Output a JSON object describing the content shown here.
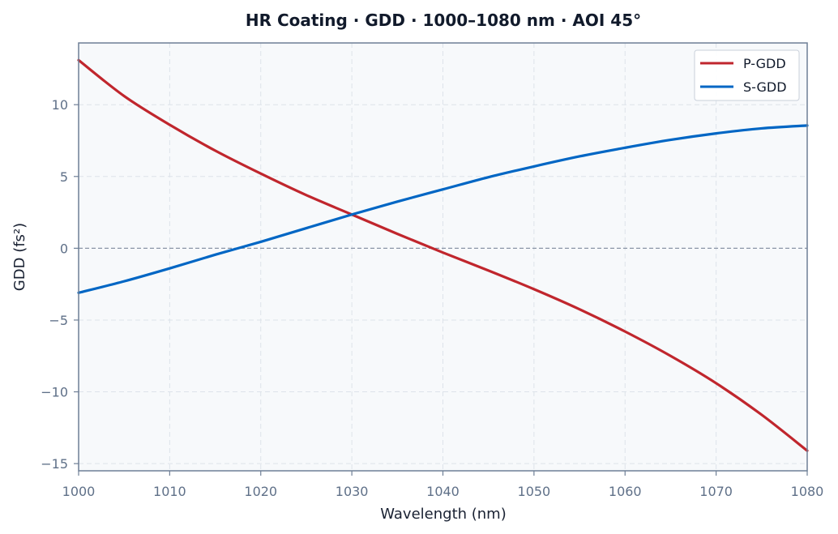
{
  "chart_data": {
    "type": "line",
    "title": "HR Coating · GDD · 1000–1080 nm · AOI 45°",
    "xlabel": "Wavelength (nm)",
    "ylabel": "GDD (fs²)",
    "xlim": [
      1000,
      1080
    ],
    "ylim": [
      -15.5,
      14.3
    ],
    "xticks": [
      1000,
      1010,
      1020,
      1030,
      1040,
      1050,
      1060,
      1070,
      1080
    ],
    "yticks": [
      -15,
      -10,
      -5,
      0,
      5,
      10
    ],
    "ytick_labels": [
      "−15",
      "−10",
      "−5",
      "0",
      "5",
      "10"
    ],
    "grid": true,
    "zero_line": true,
    "legend_position": "top-right",
    "x": [
      1000,
      1005,
      1010,
      1015,
      1020,
      1025,
      1030,
      1035,
      1040,
      1045,
      1050,
      1055,
      1060,
      1065,
      1070,
      1075,
      1080
    ],
    "series": [
      {
        "name": "P-GDD",
        "color": "#c0262d",
        "values": [
          13.1,
          10.6,
          8.6,
          6.8,
          5.2,
          3.7,
          2.35,
          1.0,
          -0.3,
          -1.55,
          -2.85,
          -4.25,
          -5.8,
          -7.5,
          -9.4,
          -11.6,
          -14.1
        ]
      },
      {
        "name": "S-GDD",
        "color": "#0066c4",
        "values": [
          -3.1,
          -2.3,
          -1.4,
          -0.45,
          0.45,
          1.4,
          2.35,
          3.25,
          4.1,
          4.95,
          5.7,
          6.4,
          7.0,
          7.55,
          8.0,
          8.35,
          8.55
        ]
      }
    ]
  }
}
